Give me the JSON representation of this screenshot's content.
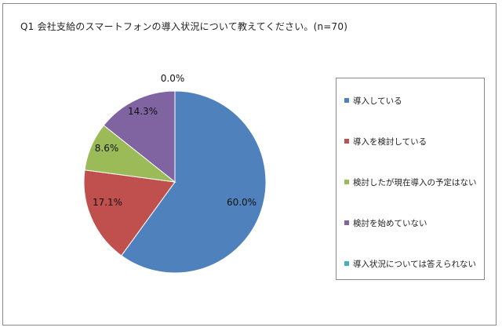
{
  "chart_data": {
    "type": "pie",
    "title": "Q1 会社支給のスマートフォンの導入状況について教えてください。(n=70)",
    "start_angle_deg": 0,
    "direction": "clockwise",
    "legend_position": "right",
    "slices": [
      {
        "label": "導入している",
        "value": 60.0,
        "value_label": "60.0%",
        "color": "#4f81bd"
      },
      {
        "label": "導入を検討している",
        "value": 17.1,
        "value_label": "17.1%",
        "color": "#c0504d"
      },
      {
        "label": "検討したが現在導入の予定はない",
        "value": 8.6,
        "value_label": "8.6%",
        "color": "#9bbb59"
      },
      {
        "label": "検討を始めていない",
        "value": 14.3,
        "value_label": "14.3%",
        "color": "#8064a2"
      },
      {
        "label": "導入状況については答えられない",
        "value": 0.0,
        "value_label": "0.0%",
        "color": "#4bacc6"
      }
    ]
  }
}
